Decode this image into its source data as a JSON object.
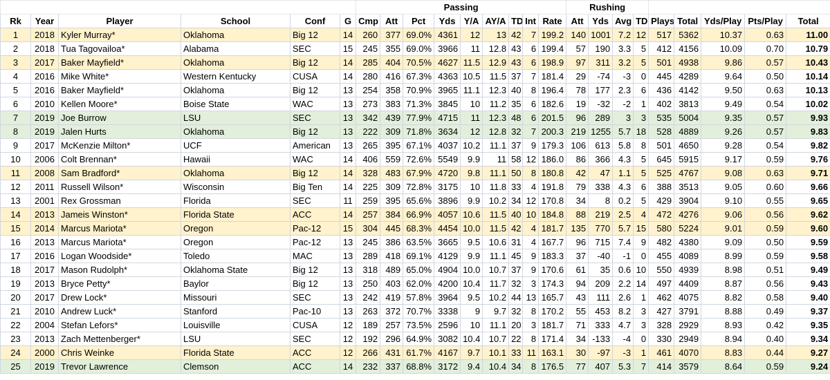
{
  "groups": {
    "passing": "Passing",
    "rushing": "Rushing"
  },
  "headers": [
    "Rk",
    "Year",
    "Player",
    "School",
    "Conf",
    "G",
    "Cmp",
    "Att",
    "Pct",
    "Yds",
    "Y/A",
    "AY/A",
    "TD",
    "Int",
    "Rate",
    "Att",
    "Yds",
    "Avg",
    "TD",
    "Plays",
    "Total",
    "Yds/Play",
    "Pts/Play",
    "Total"
  ],
  "colors": {
    "yellow": "#fff2cc",
    "green": "#e2efda"
  },
  "rows": [
    {
      "hl": "yellow",
      "c": [
        "1",
        "2018",
        "Kyler Murray*",
        "Oklahoma",
        "Big 12",
        "14",
        "260",
        "377",
        "69.0%",
        "4361",
        "12",
        "13",
        "42",
        "7",
        "199.2",
        "140",
        "1001",
        "7.2",
        "12",
        "517",
        "5362",
        "10.37",
        "0.63",
        "11.00"
      ]
    },
    {
      "hl": "",
      "c": [
        "2",
        "2018",
        "Tua Tagovailoa*",
        "Alabama",
        "SEC",
        "15",
        "245",
        "355",
        "69.0%",
        "3966",
        "11",
        "12.8",
        "43",
        "6",
        "199.4",
        "57",
        "190",
        "3.3",
        "5",
        "412",
        "4156",
        "10.09",
        "0.70",
        "10.79"
      ]
    },
    {
      "hl": "yellow",
      "c": [
        "3",
        "2017",
        "Baker Mayfield*",
        "Oklahoma",
        "Big 12",
        "14",
        "285",
        "404",
        "70.5%",
        "4627",
        "11.5",
        "12.9",
        "43",
        "6",
        "198.9",
        "97",
        "311",
        "3.2",
        "5",
        "501",
        "4938",
        "9.86",
        "0.57",
        "10.43"
      ]
    },
    {
      "hl": "",
      "c": [
        "4",
        "2016",
        "Mike White*",
        "Western Kentucky",
        "CUSA",
        "14",
        "280",
        "416",
        "67.3%",
        "4363",
        "10.5",
        "11.5",
        "37",
        "7",
        "181.4",
        "29",
        "-74",
        "-3",
        "0",
        "445",
        "4289",
        "9.64",
        "0.50",
        "10.14"
      ]
    },
    {
      "hl": "",
      "c": [
        "5",
        "2016",
        "Baker Mayfield*",
        "Oklahoma",
        "Big 12",
        "13",
        "254",
        "358",
        "70.9%",
        "3965",
        "11.1",
        "12.3",
        "40",
        "8",
        "196.4",
        "78",
        "177",
        "2.3",
        "6",
        "436",
        "4142",
        "9.50",
        "0.63",
        "10.13"
      ]
    },
    {
      "hl": "",
      "c": [
        "6",
        "2010",
        "Kellen Moore*",
        "Boise State",
        "WAC",
        "13",
        "273",
        "383",
        "71.3%",
        "3845",
        "10",
        "11.2",
        "35",
        "6",
        "182.6",
        "19",
        "-32",
        "-2",
        "1",
        "402",
        "3813",
        "9.49",
        "0.54",
        "10.02"
      ]
    },
    {
      "hl": "green",
      "c": [
        "7",
        "2019",
        "Joe Burrow",
        "LSU",
        "SEC",
        "13",
        "342",
        "439",
        "77.9%",
        "4715",
        "11",
        "12.3",
        "48",
        "6",
        "201.5",
        "96",
        "289",
        "3",
        "3",
        "535",
        "5004",
        "9.35",
        "0.57",
        "9.93"
      ]
    },
    {
      "hl": "green",
      "c": [
        "8",
        "2019",
        "Jalen Hurts",
        "Oklahoma",
        "Big 12",
        "13",
        "222",
        "309",
        "71.8%",
        "3634",
        "12",
        "12.8",
        "32",
        "7",
        "200.3",
        "219",
        "1255",
        "5.7",
        "18",
        "528",
        "4889",
        "9.26",
        "0.57",
        "9.83"
      ]
    },
    {
      "hl": "",
      "c": [
        "9",
        "2017",
        "McKenzie Milton*",
        "UCF",
        "American",
        "13",
        "265",
        "395",
        "67.1%",
        "4037",
        "10.2",
        "11.1",
        "37",
        "9",
        "179.3",
        "106",
        "613",
        "5.8",
        "8",
        "501",
        "4650",
        "9.28",
        "0.54",
        "9.82"
      ]
    },
    {
      "hl": "",
      "c": [
        "10",
        "2006",
        "Colt Brennan*",
        "Hawaii",
        "WAC",
        "14",
        "406",
        "559",
        "72.6%",
        "5549",
        "9.9",
        "11",
        "58",
        "12",
        "186.0",
        "86",
        "366",
        "4.3",
        "5",
        "645",
        "5915",
        "9.17",
        "0.59",
        "9.76"
      ]
    },
    {
      "hl": "yellow",
      "c": [
        "11",
        "2008",
        "Sam Bradford*",
        "Oklahoma",
        "Big 12",
        "14",
        "328",
        "483",
        "67.9%",
        "4720",
        "9.8",
        "11.1",
        "50",
        "8",
        "180.8",
        "42",
        "47",
        "1.1",
        "5",
        "525",
        "4767",
        "9.08",
        "0.63",
        "9.71"
      ]
    },
    {
      "hl": "",
      "c": [
        "12",
        "2011",
        "Russell Wilson*",
        "Wisconsin",
        "Big Ten",
        "14",
        "225",
        "309",
        "72.8%",
        "3175",
        "10",
        "11.8",
        "33",
        "4",
        "191.8",
        "79",
        "338",
        "4.3",
        "6",
        "388",
        "3513",
        "9.05",
        "0.60",
        "9.66"
      ]
    },
    {
      "hl": "",
      "c": [
        "13",
        "2001",
        "Rex Grossman",
        "Florida",
        "SEC",
        "11",
        "259",
        "395",
        "65.6%",
        "3896",
        "9.9",
        "10.2",
        "34",
        "12",
        "170.8",
        "34",
        "8",
        "0.2",
        "5",
        "429",
        "3904",
        "9.10",
        "0.55",
        "9.65"
      ]
    },
    {
      "hl": "yellow",
      "c": [
        "14",
        "2013",
        "Jameis Winston*",
        "Florida State",
        "ACC",
        "14",
        "257",
        "384",
        "66.9%",
        "4057",
        "10.6",
        "11.5",
        "40",
        "10",
        "184.8",
        "88",
        "219",
        "2.5",
        "4",
        "472",
        "4276",
        "9.06",
        "0.56",
        "9.62"
      ]
    },
    {
      "hl": "yellow",
      "c": [
        "15",
        "2014",
        "Marcus Mariota*",
        "Oregon",
        "Pac-12",
        "15",
        "304",
        "445",
        "68.3%",
        "4454",
        "10.0",
        "11.5",
        "42",
        "4",
        "181.7",
        "135",
        "770",
        "5.7",
        "15",
        "580",
        "5224",
        "9.01",
        "0.59",
        "9.60"
      ]
    },
    {
      "hl": "",
      "c": [
        "16",
        "2013",
        "Marcus Mariota*",
        "Oregon",
        "Pac-12",
        "13",
        "245",
        "386",
        "63.5%",
        "3665",
        "9.5",
        "10.6",
        "31",
        "4",
        "167.7",
        "96",
        "715",
        "7.4",
        "9",
        "482",
        "4380",
        "9.09",
        "0.50",
        "9.59"
      ]
    },
    {
      "hl": "",
      "c": [
        "17",
        "2016",
        "Logan Woodside*",
        "Toledo",
        "MAC",
        "13",
        "289",
        "418",
        "69.1%",
        "4129",
        "9.9",
        "11.1",
        "45",
        "9",
        "183.3",
        "37",
        "-40",
        "-1",
        "0",
        "455",
        "4089",
        "8.99",
        "0.59",
        "9.58"
      ]
    },
    {
      "hl": "",
      "c": [
        "18",
        "2017",
        "Mason Rudolph*",
        "Oklahoma State",
        "Big 12",
        "13",
        "318",
        "489",
        "65.0%",
        "4904",
        "10.0",
        "10.7",
        "37",
        "9",
        "170.6",
        "61",
        "35",
        "0.6",
        "10",
        "550",
        "4939",
        "8.98",
        "0.51",
        "9.49"
      ]
    },
    {
      "hl": "",
      "c": [
        "19",
        "2013",
        "Bryce Petty*",
        "Baylor",
        "Big 12",
        "13",
        "250",
        "403",
        "62.0%",
        "4200",
        "10.4",
        "11.7",
        "32",
        "3",
        "174.3",
        "94",
        "209",
        "2.2",
        "14",
        "497",
        "4409",
        "8.87",
        "0.56",
        "9.43"
      ]
    },
    {
      "hl": "",
      "c": [
        "20",
        "2017",
        "Drew Lock*",
        "Missouri",
        "SEC",
        "13",
        "242",
        "419",
        "57.8%",
        "3964",
        "9.5",
        "10.2",
        "44",
        "13",
        "165.7",
        "43",
        "111",
        "2.6",
        "1",
        "462",
        "4075",
        "8.82",
        "0.58",
        "9.40"
      ]
    },
    {
      "hl": "",
      "c": [
        "21",
        "2010",
        "Andrew Luck*",
        "Stanford",
        "Pac-10",
        "13",
        "263",
        "372",
        "70.7%",
        "3338",
        "9",
        "9.7",
        "32",
        "8",
        "170.2",
        "55",
        "453",
        "8.2",
        "3",
        "427",
        "3791",
        "8.88",
        "0.49",
        "9.37"
      ]
    },
    {
      "hl": "",
      "c": [
        "22",
        "2004",
        "Stefan Lefors*",
        "Louisville",
        "CUSA",
        "12",
        "189",
        "257",
        "73.5%",
        "2596",
        "10",
        "11.1",
        "20",
        "3",
        "181.7",
        "71",
        "333",
        "4.7",
        "3",
        "328",
        "2929",
        "8.93",
        "0.42",
        "9.35"
      ]
    },
    {
      "hl": "",
      "c": [
        "23",
        "2013",
        "Zach Mettenberger*",
        "LSU",
        "SEC",
        "12",
        "192",
        "296",
        "64.9%",
        "3082",
        "10.4",
        "10.7",
        "22",
        "8",
        "171.4",
        "34",
        "-133",
        "-4",
        "0",
        "330",
        "2949",
        "8.94",
        "0.40",
        "9.34"
      ]
    },
    {
      "hl": "yellow",
      "c": [
        "24",
        "2000",
        "Chris Weinke",
        "Florida State",
        "ACC",
        "12",
        "266",
        "431",
        "61.7%",
        "4167",
        "9.7",
        "10.1",
        "33",
        "11",
        "163.1",
        "30",
        "-97",
        "-3",
        "1",
        "461",
        "4070",
        "8.83",
        "0.44",
        "9.27"
      ]
    },
    {
      "hl": "green",
      "c": [
        "25",
        "2019",
        "Trevor Lawrence",
        "Clemson",
        "ACC",
        "14",
        "232",
        "337",
        "68.8%",
        "3172",
        "9.4",
        "10.4",
        "34",
        "8",
        "176.5",
        "77",
        "407",
        "5.3",
        "7",
        "414",
        "3579",
        "8.64",
        "0.59",
        "9.24"
      ]
    }
  ]
}
